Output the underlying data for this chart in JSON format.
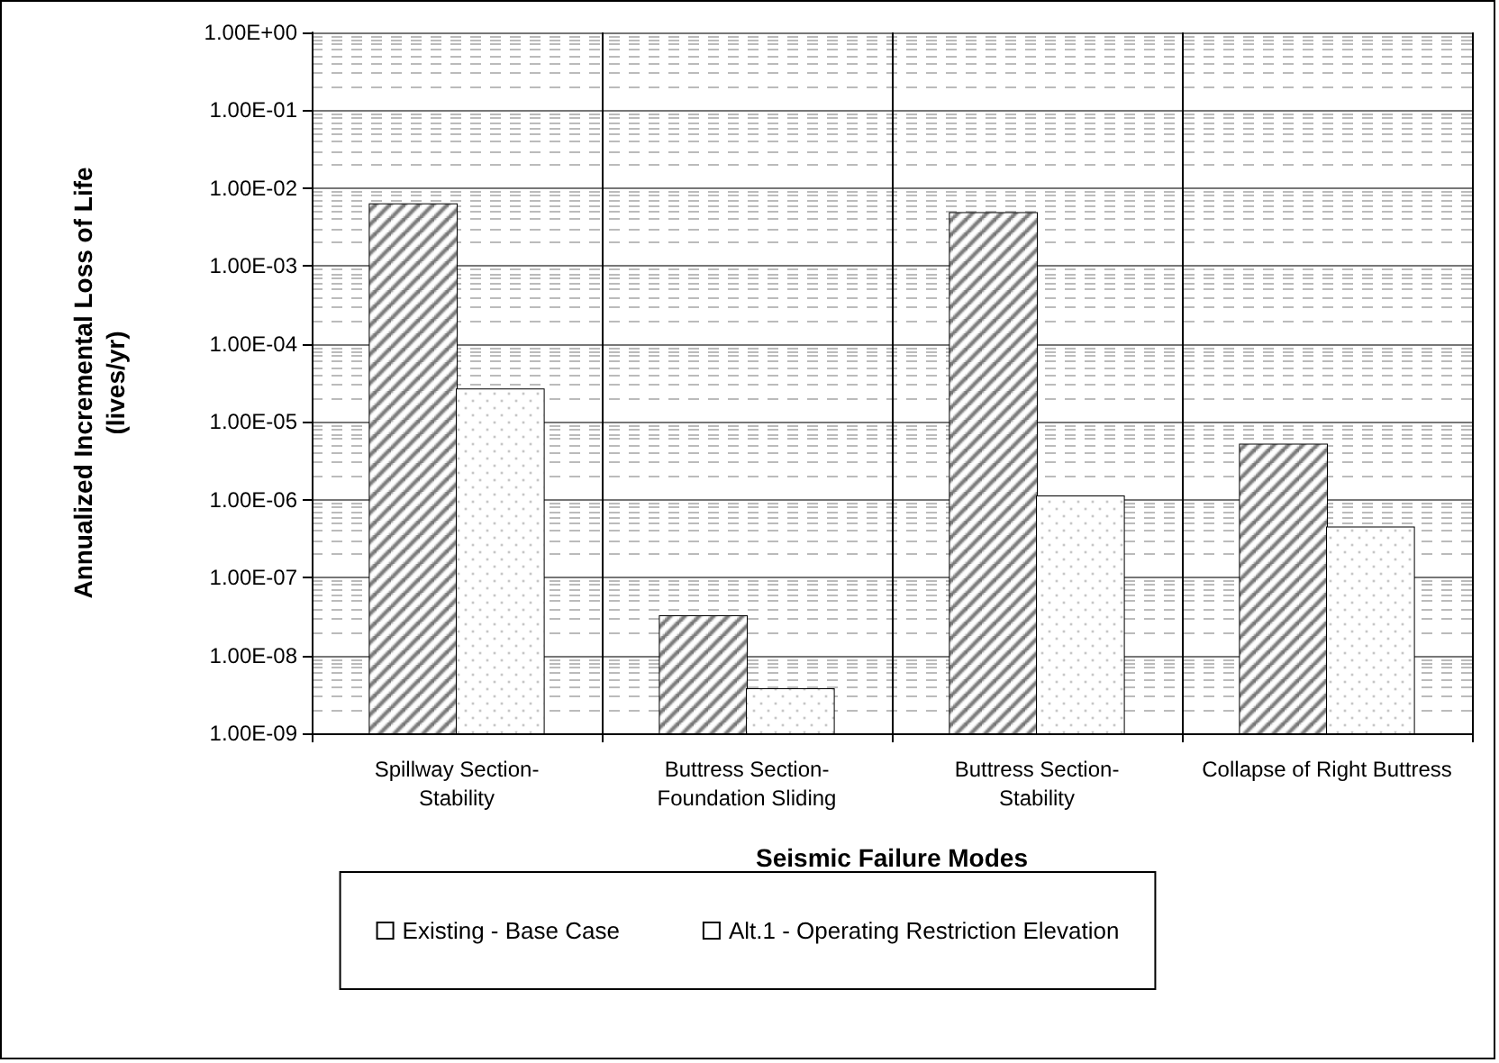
{
  "chart_data": {
    "type": "bar",
    "xlabel": "Seismic Failure Modes",
    "ylabel": "Annualized Incremental Loss of Life (lives/yr)",
    "categories": [
      "Spillway Section-Stability",
      "Buttress Section-Foundation Sliding",
      "Buttress Section-Stability",
      "Collapse of Right Buttress"
    ],
    "series": [
      {
        "name": "Existing - Base Case",
        "color": "#ffffff",
        "values": [
          0.0062,
          3.2e-08,
          0.0048,
          5.1e-06
        ]
      },
      {
        "name": "Alt.1 - Operating Restriction Elevation",
        "color": "#ffffff",
        "values": [
          2.6e-05,
          3.7e-09,
          1.1e-06,
          4.4e-07
        ]
      }
    ],
    "log": true,
    "ylim": [
      1e-09,
      1
    ],
    "yticks": [
      {
        "value": 1e-09,
        "label": "1.00E-09"
      },
      {
        "value": 1e-08,
        "label": "1.00E-08"
      },
      {
        "value": 1e-07,
        "label": "1.00E-07"
      },
      {
        "value": 1e-06,
        "label": "1.00E-06"
      },
      {
        "value": 1e-05,
        "label": "1.00E-05"
      },
      {
        "value": 0.0001,
        "label": "1.00E-04"
      },
      {
        "value": 0.001,
        "label": "1.00E-03"
      },
      {
        "value": 0.01,
        "label": "1.00E-02"
      },
      {
        "value": 0.1,
        "label": "1.00E-01"
      },
      {
        "value": 1,
        "label": "1.00E+00"
      }
    ],
    "grid": true,
    "legend": "bottom"
  }
}
